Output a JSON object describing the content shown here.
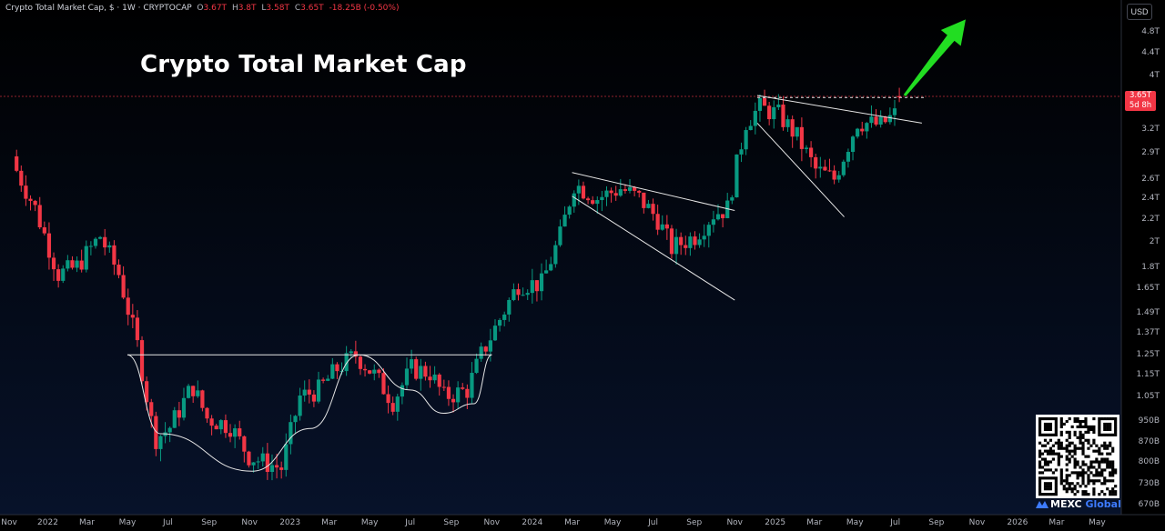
{
  "legend": {
    "symbol": "Crypto Total Market Cap, $ · 1W · CRYPTOCAP",
    "open_key": "O",
    "open_value": "3.67T",
    "high_key": "H",
    "high_value": "3.8T",
    "low_key": "L",
    "low_value": "3.58T",
    "close_key": "C",
    "close_value": "3.65T",
    "change_value": "-18.25B (-0.50%)"
  },
  "title": "Crypto Total Market Cap",
  "currency": "USD",
  "last_price": {
    "value": "3.65T",
    "countdown": "5d 8h"
  },
  "brand": {
    "name_part1": "MEXC",
    "name_part2": " Global"
  },
  "colors": {
    "up": "#089981",
    "down": "#f23645",
    "arrow": "#22dd22",
    "pattern_lines": "#e6e6e6",
    "background": "#000000"
  },
  "icons": [
    "up-arrow-icon",
    "qr-code",
    "mexc-logo-icon"
  ],
  "chart_data": {
    "type": "candlestick",
    "title": "Crypto Total Market Cap",
    "timeframe": "1W",
    "y_scale": "log",
    "ylim": [
      0.66,
      5.2
    ],
    "y_ticks": [
      {
        "label": "4.8T",
        "value": 4.8
      },
      {
        "label": "4.4T",
        "value": 4.4
      },
      {
        "label": "4T",
        "value": 4.0
      },
      {
        "label": "3.2T",
        "value": 3.2
      },
      {
        "label": "2.9T",
        "value": 2.9
      },
      {
        "label": "2.6T",
        "value": 2.6
      },
      {
        "label": "2.4T",
        "value": 2.4
      },
      {
        "label": "2.2T",
        "value": 2.2
      },
      {
        "label": "2T",
        "value": 2.0
      },
      {
        "label": "1.8T",
        "value": 1.8
      },
      {
        "label": "1.65T",
        "value": 1.65
      },
      {
        "label": "1.49T",
        "value": 1.49
      },
      {
        "label": "1.37T",
        "value": 1.37
      },
      {
        "label": "1.25T",
        "value": 1.25
      },
      {
        "label": "1.15T",
        "value": 1.15
      },
      {
        "label": "1.05T",
        "value": 1.05
      },
      {
        "label": "950B",
        "value": 0.95
      },
      {
        "label": "870B",
        "value": 0.87
      },
      {
        "label": "800B",
        "value": 0.8
      },
      {
        "label": "730B",
        "value": 0.73
      },
      {
        "label": "670B",
        "value": 0.67
      }
    ],
    "x_range": [
      "2021-11-01",
      "2026-06-01"
    ],
    "x_ticks": [
      {
        "label": "Nov",
        "date": "2021-11-01"
      },
      {
        "label": "2022",
        "date": "2022-01-01"
      },
      {
        "label": "Mar",
        "date": "2022-03-01"
      },
      {
        "label": "May",
        "date": "2022-05-01"
      },
      {
        "label": "Jul",
        "date": "2022-07-01"
      },
      {
        "label": "Sep",
        "date": "2022-09-01"
      },
      {
        "label": "Nov",
        "date": "2022-11-01"
      },
      {
        "label": "2023",
        "date": "2023-01-01"
      },
      {
        "label": "Mar",
        "date": "2023-03-01"
      },
      {
        "label": "May",
        "date": "2023-05-01"
      },
      {
        "label": "Jul",
        "date": "2023-07-01"
      },
      {
        "label": "Sep",
        "date": "2023-09-01"
      },
      {
        "label": "Nov",
        "date": "2023-11-01"
      },
      {
        "label": "2024",
        "date": "2024-01-01"
      },
      {
        "label": "Mar",
        "date": "2024-03-01"
      },
      {
        "label": "May",
        "date": "2024-05-01"
      },
      {
        "label": "Jul",
        "date": "2024-07-01"
      },
      {
        "label": "Sep",
        "date": "2024-09-01"
      },
      {
        "label": "Nov",
        "date": "2024-11-01"
      },
      {
        "label": "2025",
        "date": "2025-01-01"
      },
      {
        "label": "Mar",
        "date": "2025-03-01"
      },
      {
        "label": "May",
        "date": "2025-05-01"
      },
      {
        "label": "Jul",
        "date": "2025-07-01"
      },
      {
        "label": "Sep",
        "date": "2025-09-01"
      },
      {
        "label": "Nov",
        "date": "2025-11-01"
      },
      {
        "label": "2026",
        "date": "2026-01-01"
      },
      {
        "label": "Mar",
        "date": "2026-03-01"
      },
      {
        "label": "May",
        "date": "2026-05-01"
      }
    ],
    "anchors": [
      [
        "2021-11-15",
        2.8
      ],
      [
        "2021-12-20",
        2.3
      ],
      [
        "2022-01-24",
        1.75
      ],
      [
        "2022-02-20",
        1.8
      ],
      [
        "2022-03-28",
        2.05
      ],
      [
        "2022-04-25",
        1.75
      ],
      [
        "2022-05-23",
        1.3
      ],
      [
        "2022-06-18",
        0.88
      ],
      [
        "2022-07-10",
        0.92
      ],
      [
        "2022-08-14",
        1.1
      ],
      [
        "2022-09-05",
        0.96
      ],
      [
        "2022-10-10",
        0.93
      ],
      [
        "2022-11-07",
        0.82
      ],
      [
        "2022-11-28",
        0.8
      ],
      [
        "2022-12-26",
        0.78
      ],
      [
        "2023-01-23",
        1.05
      ],
      [
        "2023-02-20",
        1.08
      ],
      [
        "2023-03-20",
        1.18
      ],
      [
        "2023-04-17",
        1.25
      ],
      [
        "2023-05-15",
        1.15
      ],
      [
        "2023-06-12",
        1.03
      ],
      [
        "2023-07-10",
        1.18
      ],
      [
        "2023-08-07",
        1.16
      ],
      [
        "2023-08-28",
        1.05
      ],
      [
        "2023-10-02",
        1.08
      ],
      [
        "2023-10-23",
        1.25
      ],
      [
        "2023-11-20",
        1.45
      ],
      [
        "2023-12-18",
        1.68
      ],
      [
        "2024-01-22",
        1.68
      ],
      [
        "2024-02-19",
        2.05
      ],
      [
        "2024-03-11",
        2.55
      ],
      [
        "2024-04-15",
        2.4
      ],
      [
        "2024-05-20",
        2.5
      ],
      [
        "2024-06-17",
        2.4
      ],
      [
        "2024-07-15",
        2.2
      ],
      [
        "2024-08-05",
        1.95
      ],
      [
        "2024-09-09",
        2.05
      ],
      [
        "2024-10-07",
        2.25
      ],
      [
        "2024-10-28",
        2.3
      ],
      [
        "2024-11-25",
        3.3
      ],
      [
        "2024-12-16",
        3.5
      ],
      [
        "2025-01-13",
        3.4
      ],
      [
        "2025-02-10",
        3.1
      ],
      [
        "2025-03-10",
        2.7
      ],
      [
        "2025-04-07",
        2.6
      ],
      [
        "2025-05-12",
        3.3
      ],
      [
        "2025-06-16",
        3.25
      ],
      [
        "2025-07-07",
        3.4
      ],
      [
        "2025-07-14",
        3.65
      ]
    ],
    "last_candle": {
      "open": 3.67,
      "high": 3.8,
      "low": 3.58,
      "close": 3.65
    },
    "patterns": {
      "cup": [
        [
          "2022-05-01",
          1.25
        ],
        [
          "2022-06-20",
          0.9
        ],
        [
          "2022-11-05",
          0.77
        ],
        [
          "2023-02-01",
          0.92
        ],
        [
          "2023-04-15",
          1.25
        ]
      ],
      "handle": [
        [
          "2023-04-15",
          1.25
        ],
        [
          "2023-07-01",
          1.08
        ],
        [
          "2023-08-20",
          0.98
        ],
        [
          "2023-10-05",
          1.02
        ],
        [
          "2023-11-01",
          1.25
        ]
      ],
      "rim": [
        [
          "2022-05-01",
          1.25
        ],
        [
          "2023-11-01",
          1.25
        ]
      ],
      "wedge_upper": [
        [
          "2024-03-01",
          2.67
        ],
        [
          "2024-11-01",
          2.28
        ]
      ],
      "wedge_lower": [
        [
          "2024-03-01",
          2.42
        ],
        [
          "2024-11-01",
          1.57
        ]
      ],
      "flag_upper": [
        [
          "2024-12-05",
          3.68
        ],
        [
          "2025-08-10",
          3.28
        ]
      ],
      "flag_lower": [
        [
          "2024-12-05",
          3.28
        ],
        [
          "2025-04-15",
          2.22
        ]
      ],
      "resistance": [
        [
          "2024-12-05",
          3.65
        ],
        [
          "2025-08-15",
          3.65
        ]
      ],
      "arrow_from": [
        "2025-07-15",
        3.68
      ],
      "arrow_to": [
        "2025-10-15",
        5.05
      ]
    }
  }
}
